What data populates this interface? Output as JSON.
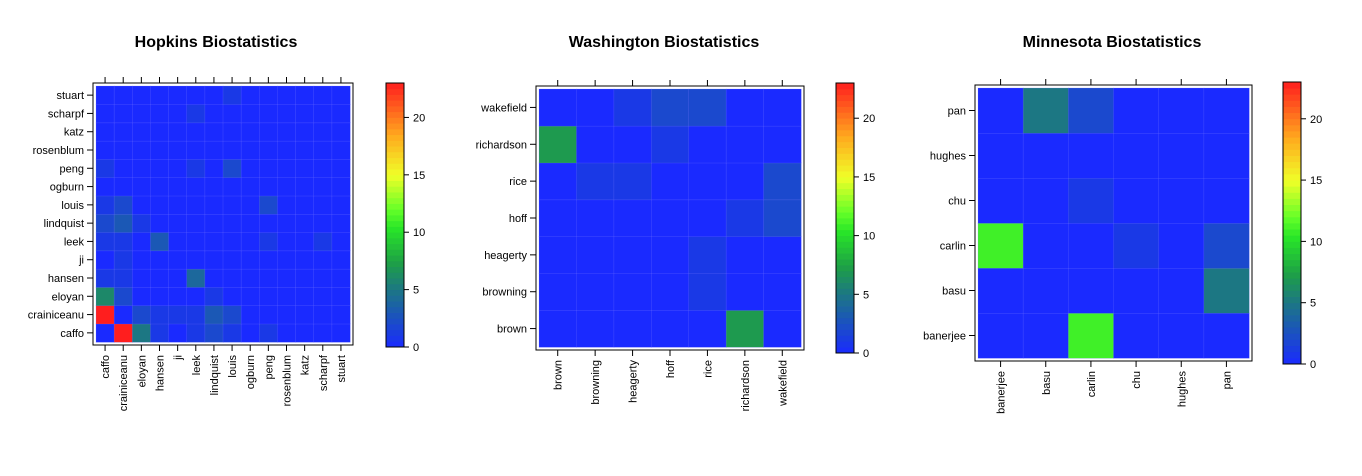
{
  "chart_data": [
    {
      "type": "heatmap",
      "title": "Hopkins Biostatistics",
      "x_labels": [
        "caffo",
        "crainiceanu",
        "eloyan",
        "hansen",
        "ji",
        "leek",
        "lindquist",
        "louis",
        "ogburn",
        "peng",
        "rosenblum",
        "katz",
        "scharpf",
        "stuart"
      ],
      "y_labels": [
        "caffo",
        "crainiceanu",
        "eloyan",
        "hansen",
        "ji",
        "leek",
        "lindquist",
        "louis",
        "ogburn",
        "peng",
        "rosenblum",
        "katz",
        "scharpf",
        "stuart"
      ],
      "values": [
        [
          0,
          23,
          5,
          1,
          0,
          1,
          2,
          1,
          0,
          1,
          0,
          0,
          0,
          0
        ],
        [
          23,
          0,
          2,
          1,
          1,
          1,
          3,
          2,
          0,
          0,
          0,
          0,
          0,
          0
        ],
        [
          6,
          2,
          0,
          0,
          0,
          0,
          1,
          0,
          0,
          0,
          0,
          0,
          0,
          0
        ],
        [
          1,
          1,
          0,
          0,
          0,
          4,
          0,
          0,
          0,
          0,
          0,
          0,
          0,
          0
        ],
        [
          0,
          1,
          0,
          0,
          0,
          0,
          0,
          0,
          0,
          0,
          0,
          0,
          0,
          0
        ],
        [
          1,
          1,
          0,
          3,
          0,
          0,
          0,
          0,
          0,
          1,
          0,
          0,
          1,
          0
        ],
        [
          2,
          3,
          1,
          0,
          0,
          0,
          0,
          0,
          0,
          0,
          0,
          0,
          0,
          0
        ],
        [
          1,
          2,
          0,
          0,
          0,
          0,
          0,
          0,
          0,
          2,
          0,
          0,
          0,
          0
        ],
        [
          0,
          0,
          0,
          0,
          0,
          0,
          0,
          0,
          0,
          0,
          0,
          0,
          0,
          0
        ],
        [
          1,
          0,
          0,
          0,
          0,
          1,
          0,
          2,
          0,
          0,
          0,
          0,
          0,
          0
        ],
        [
          0,
          0,
          0,
          0,
          0,
          0,
          0,
          0,
          0,
          0,
          0,
          0,
          0,
          0
        ],
        [
          0,
          0,
          0,
          0,
          0,
          0,
          0,
          0,
          0,
          0,
          0,
          0,
          0,
          0
        ],
        [
          0,
          0,
          0,
          0,
          0,
          1,
          0,
          0,
          0,
          0,
          0,
          0,
          0,
          0
        ],
        [
          0,
          0,
          0,
          0,
          0,
          0,
          0,
          1,
          0,
          0,
          0,
          0,
          0,
          0
        ]
      ],
      "colorbar": {
        "min": 0,
        "max": 23,
        "ticks": [
          0,
          5,
          10,
          15,
          20
        ]
      }
    },
    {
      "type": "heatmap",
      "title": "Washington Biostatistics",
      "x_labels": [
        "brown",
        "browning",
        "heagerty",
        "hoff",
        "rice",
        "richardson",
        "wakefield"
      ],
      "y_labels": [
        "brown",
        "browning",
        "heagerty",
        "hoff",
        "rice",
        "richardson",
        "wakefield"
      ],
      "values": [
        [
          0,
          0,
          0,
          0,
          0,
          7,
          0
        ],
        [
          0,
          0,
          0,
          0,
          1,
          0,
          0
        ],
        [
          0,
          0,
          0,
          0,
          1,
          0,
          0
        ],
        [
          0,
          0,
          0,
          0,
          0,
          1,
          2
        ],
        [
          0,
          1,
          1,
          0,
          0,
          0,
          2
        ],
        [
          7,
          0,
          0,
          1,
          0,
          0,
          0
        ],
        [
          0,
          0,
          1,
          2,
          2,
          0,
          0
        ]
      ],
      "colorbar": {
        "min": 0,
        "max": 23,
        "ticks": [
          0,
          5,
          10,
          15,
          20
        ]
      }
    },
    {
      "type": "heatmap",
      "title": "Minnesota Biostatistics",
      "x_labels": [
        "banerjee",
        "basu",
        "carlin",
        "chu",
        "hughes",
        "pan"
      ],
      "y_labels": [
        "banerjee",
        "basu",
        "carlin",
        "chu",
        "hughes",
        "pan"
      ],
      "values": [
        [
          0,
          0,
          11,
          0,
          0,
          0
        ],
        [
          0,
          0,
          0,
          0,
          0,
          5
        ],
        [
          11,
          0,
          0,
          1,
          0,
          2
        ],
        [
          0,
          0,
          1,
          0,
          0,
          0
        ],
        [
          0,
          0,
          0,
          0,
          0,
          0
        ],
        [
          0,
          5,
          2,
          0,
          0,
          0
        ]
      ],
      "colorbar": {
        "min": 0,
        "max": 23,
        "ticks": [
          0,
          5,
          10,
          15,
          20
        ]
      }
    }
  ]
}
